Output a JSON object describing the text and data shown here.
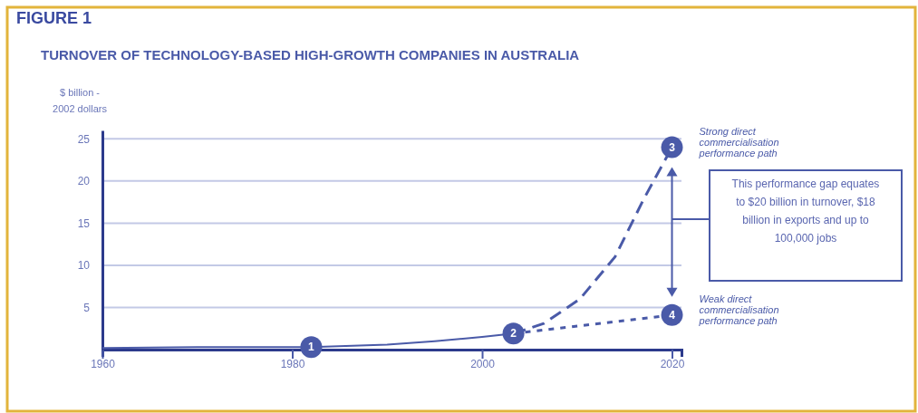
{
  "chart_data": {
    "type": "line",
    "title": "TURNOVER OF TECHNOLOGY-BASED HIGH-GROWTH COMPANIES IN AUSTRALIA",
    "ylabel": "$ billion - 2002 dollars",
    "xlim": [
      1960,
      2021
    ],
    "xticks": [
      1960,
      1980,
      2000,
      2020
    ],
    "ylim": [
      0,
      26
    ],
    "yticks": [
      5,
      10,
      15,
      20,
      25
    ],
    "grid": "y",
    "series": [
      {
        "color": "#4a5aa8",
        "line_style": "solid",
        "x": [
          1960,
          1970,
          1982,
          1990,
          1995,
          2000,
          2003.3
        ],
        "values": [
          0.2,
          0.3,
          0.3,
          0.6,
          1.0,
          1.5,
          1.9
        ]
      },
      {
        "name": "Strong direct commercialisation performance path",
        "color": "#4a5aa8",
        "line_style": "dashed",
        "x": [
          2003.3,
          2006.5,
          2010.3,
          2014,
          2017,
          2020
        ],
        "values": [
          1.9,
          3.1,
          6,
          11,
          17.8,
          24
        ]
      },
      {
        "name": "Weak direct commercialisation performance path",
        "color": "#4a5aa8",
        "line_style": "dotted",
        "x": [
          2003.3,
          2020
        ],
        "values": [
          1.9,
          4.1
        ]
      }
    ],
    "annotations": [
      "FIGURE 1",
      {
        "text": "1",
        "x": 1982,
        "y": 0.3
      },
      {
        "text": "2",
        "x": 2003.3,
        "y": 1.9
      },
      {
        "text": "3",
        "x": 2020,
        "y": 24
      },
      {
        "text": "4",
        "x": 2020,
        "y": 4.1
      },
      "This performance gap equates to $20 billion in turnover, $18 billion in exports and up to 100,000 jobs"
    ]
  }
}
